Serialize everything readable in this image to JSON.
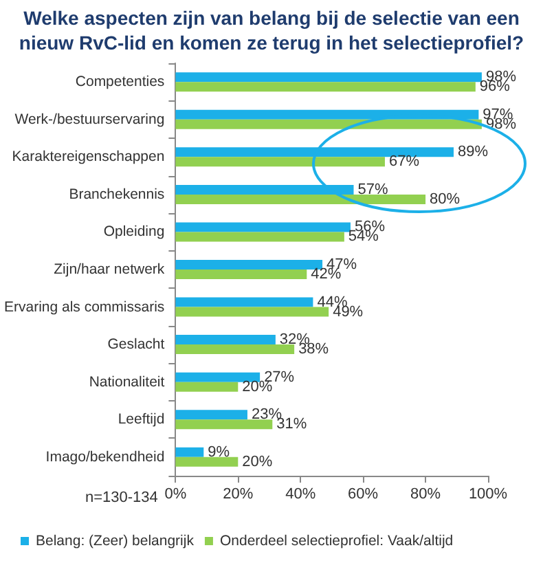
{
  "chart_data": {
    "type": "bar",
    "orientation": "horizontal",
    "title": "Welke aspecten zijn van belang bij de selectie van een nieuw RvC-lid en komen ze terug in het selectieprofiel?",
    "categories": [
      "Competenties",
      "Werk-/bestuurservaring",
      "Karaktereigenschappen",
      "Branchekennis",
      "Opleiding",
      "Zijn/haar netwerk",
      "Ervaring als commissaris",
      "Geslacht",
      "Nationaliteit",
      "Leeftijd",
      "Imago/bekendheid"
    ],
    "series": [
      {
        "name": "Belang: (Zeer) belangrijk",
        "color": "#1cb0e8",
        "values": [
          98,
          97,
          89,
          57,
          56,
          47,
          44,
          32,
          27,
          23,
          9
        ],
        "value_labels": [
          "98%",
          "97%",
          "89%",
          "57%",
          "56%",
          "47%",
          "44%",
          "32%",
          "27%",
          "23%",
          "9%"
        ]
      },
      {
        "name": "Onderdeel selectieprofiel: Vaak/altijd",
        "color": "#92d050",
        "values": [
          96,
          98,
          67,
          80,
          54,
          42,
          49,
          38,
          20,
          31,
          20
        ],
        "value_labels": [
          "96%",
          "98%",
          "67%",
          "80%",
          "54%",
          "42%",
          "49%",
          "38%",
          "20%",
          "31%",
          "20%"
        ]
      }
    ],
    "xlim": [
      0,
      100
    ],
    "xticks": [
      {
        "value": 0,
        "label": "0%"
      },
      {
        "value": 20,
        "label": "20%"
      },
      {
        "value": 40,
        "label": "40%"
      },
      {
        "value": 60,
        "label": "60%"
      },
      {
        "value": 80,
        "label": "80%"
      },
      {
        "value": 100,
        "label": "100%"
      }
    ],
    "legend": "bottom",
    "grid": false,
    "annotations": [
      "n=130-134"
    ]
  }
}
